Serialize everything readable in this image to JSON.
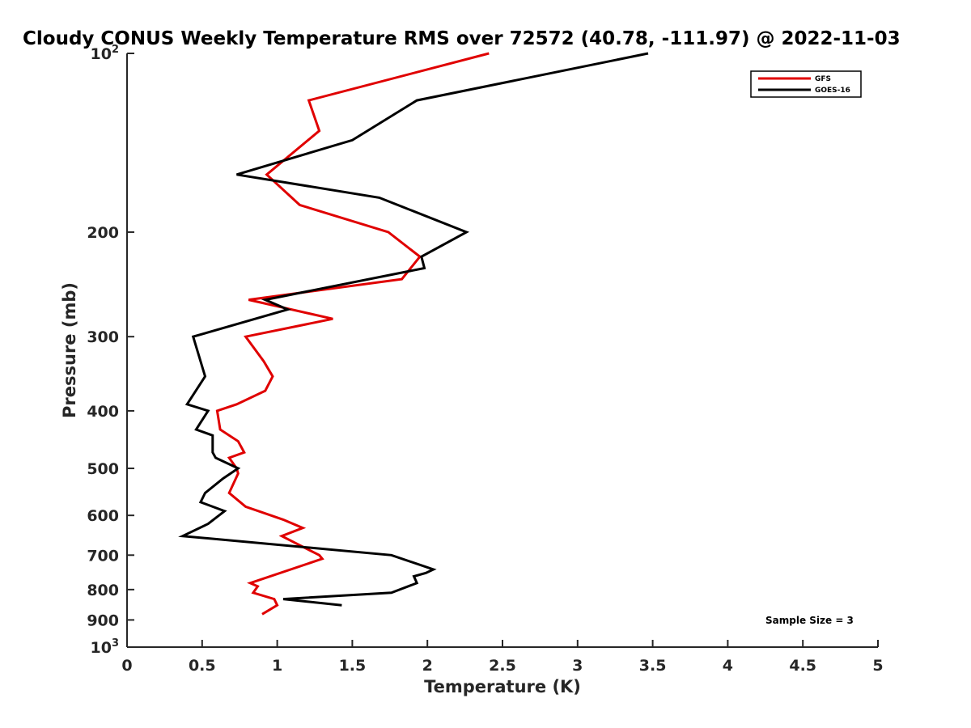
{
  "chart_data": {
    "type": "line",
    "title": "Cloudy CONUS Weekly Temperature RMS over 72572 (40.78, -111.97) @ 2022-11-03",
    "xlabel": "Temperature (K)",
    "ylabel": "Pressure (mb)",
    "xlim": [
      0,
      5
    ],
    "ylim": [
      100,
      1000
    ],
    "y_scale": "log",
    "y_reversed": true,
    "x_ticks": [
      "0",
      "0.5",
      "1",
      "1.5",
      "2",
      "2.5",
      "3",
      "3.5",
      "4",
      "4.5",
      "5"
    ],
    "y_ticks": [
      {
        "value": 100,
        "base": "10",
        "exp": "2"
      },
      {
        "value": 200,
        "label": "200"
      },
      {
        "value": 300,
        "label": "300"
      },
      {
        "value": 400,
        "label": "400"
      },
      {
        "value": 500,
        "label": "500"
      },
      {
        "value": 600,
        "label": "600"
      },
      {
        "value": 700,
        "label": "700"
      },
      {
        "value": 800,
        "label": "800"
      },
      {
        "value": 900,
        "label": "900"
      },
      {
        "value": 1000,
        "base": "10",
        "exp": "3"
      }
    ],
    "legend_position": "top-right",
    "grid": false,
    "series": [
      {
        "name": "GFS",
        "color": "#e00000",
        "points": [
          [
            2.41,
            100
          ],
          [
            1.21,
            120
          ],
          [
            1.28,
            135
          ],
          [
            0.93,
            160
          ],
          [
            1.15,
            180
          ],
          [
            1.74,
            200
          ],
          [
            1.95,
            220
          ],
          [
            1.83,
            240
          ],
          [
            0.81,
            260
          ],
          [
            1.37,
            280
          ],
          [
            0.79,
            300
          ],
          [
            0.91,
            330
          ],
          [
            0.97,
            350
          ],
          [
            0.92,
            370
          ],
          [
            0.73,
            390
          ],
          [
            0.6,
            400
          ],
          [
            0.62,
            430
          ],
          [
            0.74,
            450
          ],
          [
            0.78,
            470
          ],
          [
            0.68,
            480
          ],
          [
            0.73,
            500
          ],
          [
            0.74,
            510
          ],
          [
            0.68,
            550
          ],
          [
            0.79,
            580
          ],
          [
            1.04,
            610
          ],
          [
            1.17,
            630
          ],
          [
            1.03,
            650
          ],
          [
            1.28,
            700
          ],
          [
            1.3,
            710
          ],
          [
            0.82,
            780
          ],
          [
            0.87,
            790
          ],
          [
            0.84,
            810
          ],
          [
            0.98,
            830
          ],
          [
            1.0,
            850
          ],
          [
            0.9,
            880
          ]
        ]
      },
      {
        "name": "GOES-16",
        "color": "#000000",
        "points": [
          [
            3.47,
            100
          ],
          [
            1.93,
            120
          ],
          [
            1.5,
            140
          ],
          [
            0.73,
            160
          ],
          [
            1.68,
            175
          ],
          [
            2.26,
            200
          ],
          [
            1.96,
            220
          ],
          [
            1.98,
            230
          ],
          [
            0.92,
            260
          ],
          [
            1.07,
            270
          ],
          [
            0.44,
            300
          ],
          [
            0.52,
            350
          ],
          [
            0.4,
            390
          ],
          [
            0.54,
            400
          ],
          [
            0.46,
            430
          ],
          [
            0.57,
            440
          ],
          [
            0.57,
            470
          ],
          [
            0.59,
            480
          ],
          [
            0.74,
            500
          ],
          [
            0.64,
            520
          ],
          [
            0.52,
            550
          ],
          [
            0.49,
            570
          ],
          [
            0.65,
            590
          ],
          [
            0.54,
            620
          ],
          [
            0.37,
            650
          ],
          [
            1.76,
            700
          ],
          [
            2.04,
            740
          ],
          [
            1.99,
            750
          ],
          [
            1.91,
            760
          ],
          [
            1.93,
            780
          ],
          [
            1.76,
            810
          ],
          [
            1.04,
            830
          ],
          [
            1.43,
            850
          ]
        ]
      }
    ],
    "annotation": "Sample Size = 3"
  }
}
